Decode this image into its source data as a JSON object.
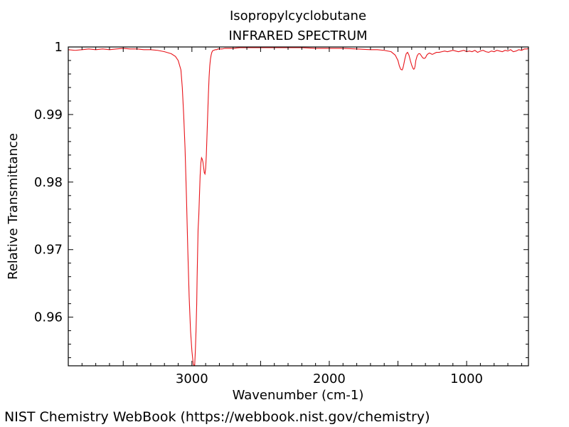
{
  "chart_data": {
    "type": "line",
    "title": "Isopropylcyclobutane",
    "subtitle": "INFRARED SPECTRUM",
    "xlabel": "Wavenumber (cm-1)",
    "ylabel": "Relative Transmittance",
    "xlim": [
      3900,
      550
    ],
    "ylim": [
      0.9528,
      1.0
    ],
    "x_reversed": true,
    "x_ticks": [
      3000,
      2000,
      1000
    ],
    "y_ticks": [
      0.96,
      0.97,
      0.98,
      0.99,
      1
    ],
    "y_tick_labels": [
      "0.96",
      "0.97",
      "0.98",
      "0.99",
      "1"
    ],
    "grid": false,
    "line_color": "#e8141a",
    "series": [
      {
        "x": [
          3900,
          3850,
          3800,
          3750,
          3700,
          3650,
          3600,
          3550,
          3500,
          3450,
          3400,
          3350,
          3300,
          3250,
          3200,
          3150,
          3120,
          3100,
          3080,
          3070,
          3060,
          3050,
          3040,
          3030,
          3020,
          3010,
          3000,
          2990,
          2980,
          2975,
          2970,
          2965,
          2962,
          2958,
          2955,
          2950,
          2945,
          2940,
          2935,
          2930,
          2925,
          2920,
          2915,
          2910,
          2905,
          2900,
          2895,
          2890,
          2885,
          2880,
          2875,
          2870,
          2865,
          2860,
          2855,
          2850,
          2845,
          2840,
          2830,
          2820,
          2810,
          2800,
          2790,
          2780,
          2760,
          2740,
          2700,
          2650,
          2600,
          2500,
          2400,
          2300,
          2200,
          2100,
          2000,
          1900,
          1800,
          1700,
          1650,
          1600,
          1550,
          1520,
          1500,
          1490,
          1480,
          1470,
          1465,
          1460,
          1450,
          1440,
          1430,
          1420,
          1410,
          1400,
          1390,
          1385,
          1380,
          1375,
          1370,
          1360,
          1350,
          1340,
          1320,
          1310,
          1300,
          1290,
          1280,
          1270,
          1260,
          1250,
          1240,
          1230,
          1220,
          1200,
          1180,
          1160,
          1140,
          1120,
          1100,
          1080,
          1060,
          1040,
          1020,
          1000,
          980,
          960,
          940,
          920,
          900,
          880,
          860,
          840,
          820,
          800,
          780,
          760,
          740,
          720,
          700,
          680,
          660,
          640,
          620,
          600,
          580,
          560,
          550
        ],
        "y": [
          0.9996,
          0.9995,
          0.9996,
          0.9997,
          0.9996,
          0.9997,
          0.9996,
          0.9997,
          0.9998,
          0.9997,
          0.9997,
          0.9996,
          0.9996,
          0.9995,
          0.9993,
          0.999,
          0.9986,
          0.998,
          0.9966,
          0.994,
          0.99,
          0.985,
          0.978,
          0.97,
          0.963,
          0.958,
          0.955,
          0.953,
          0.9528,
          0.955,
          0.958,
          0.962,
          0.966,
          0.97,
          0.973,
          0.975,
          0.978,
          0.981,
          0.9828,
          0.9836,
          0.9834,
          0.983,
          0.9822,
          0.9814,
          0.9812,
          0.982,
          0.984,
          0.987,
          0.99,
          0.993,
          0.9955,
          0.9972,
          0.9982,
          0.9988,
          0.9992,
          0.9994,
          0.9995,
          0.9995,
          0.9996,
          0.9996,
          0.9997,
          0.9997,
          0.9997,
          0.9997,
          0.9998,
          0.9998,
          0.9998,
          0.9999,
          0.9999,
          0.9999,
          0.9999,
          0.9999,
          0.9999,
          0.9998,
          0.9998,
          0.9998,
          0.9997,
          0.9996,
          0.9996,
          0.9995,
          0.9993,
          0.9988,
          0.998,
          0.9972,
          0.9967,
          0.9966,
          0.9968,
          0.9972,
          0.9982,
          0.999,
          0.9992,
          0.9988,
          0.998,
          0.9973,
          0.9968,
          0.9967,
          0.9968,
          0.9972,
          0.998,
          0.9987,
          0.999,
          0.999,
          0.9984,
          0.9983,
          0.9984,
          0.9988,
          0.999,
          0.9991,
          0.999,
          0.9989,
          0.999,
          0.9991,
          0.9992,
          0.9992,
          0.9993,
          0.9994,
          0.9993,
          0.9994,
          0.9995,
          0.9994,
          0.9993,
          0.9994,
          0.9995,
          0.9993,
          0.9994,
          0.9993,
          0.9995,
          0.9992,
          0.9994,
          0.9995,
          0.9993,
          0.9992,
          0.9994,
          0.9993,
          0.9995,
          0.9994,
          0.9993,
          0.9995,
          0.9994,
          0.9996,
          0.9993,
          0.9994,
          0.9996,
          0.9995,
          0.9997,
          0.9997,
          0.9998
        ]
      }
    ]
  },
  "footer": {
    "credit": "NIST Chemistry WebBook (https://webbook.nist.gov/chemistry)"
  }
}
